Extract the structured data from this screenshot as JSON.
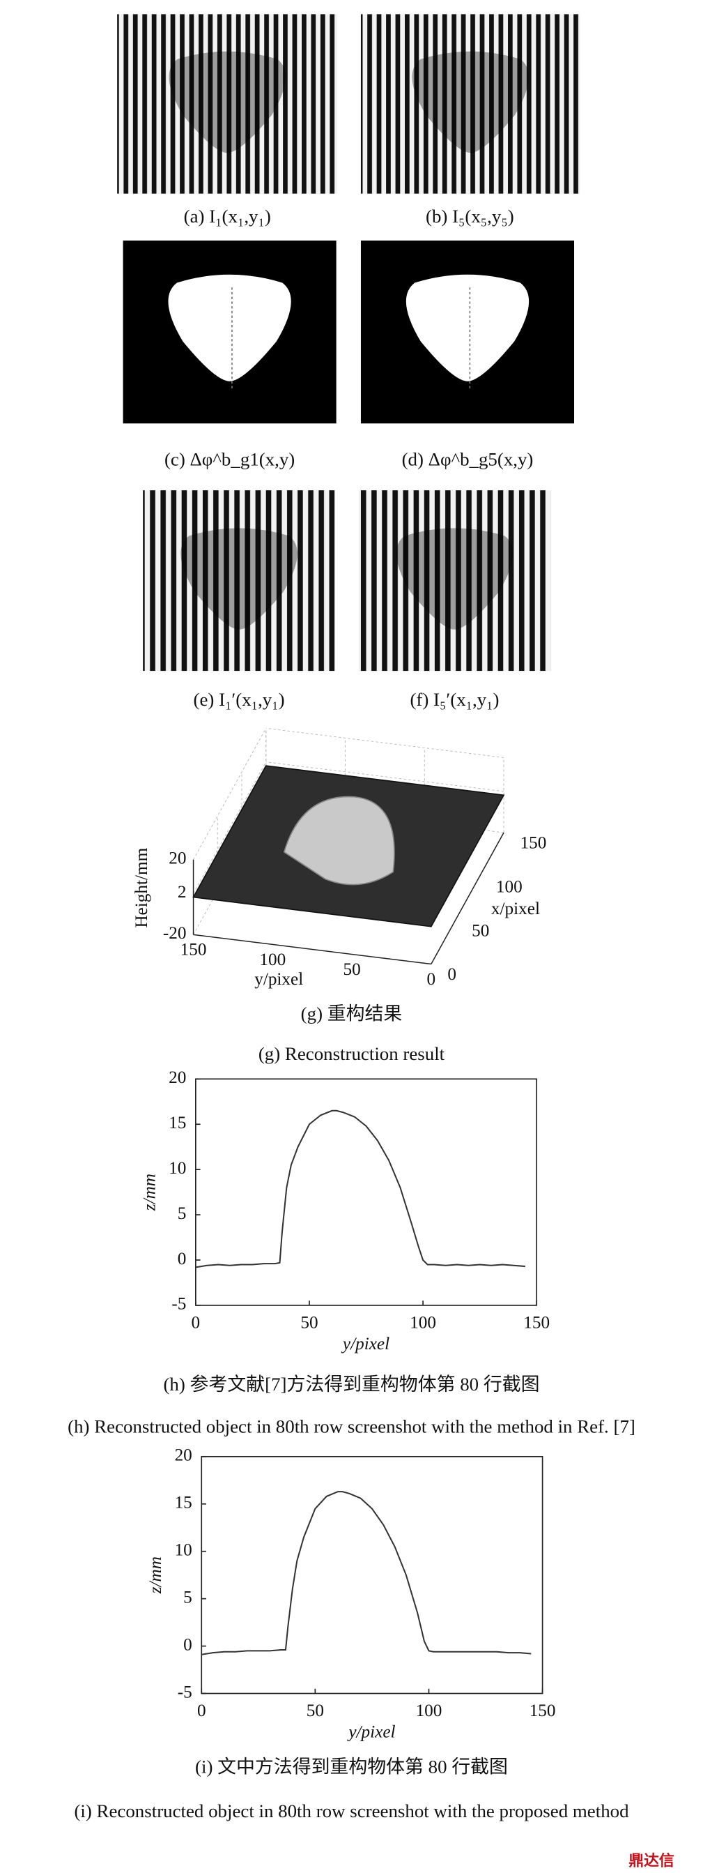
{
  "figure": {
    "captions": [
      "(a) I₁(x₁,y₁)",
      "(b) I₅(x₅,y₅)",
      "(c) Δφ^b_g1(x,y)",
      "(d) Δφ^b_g5(x,y)",
      "(e) I₁′(x₁,y₁)",
      "(f) I₅′(x₁,y₁)"
    ],
    "g_caption_cn": "(g) 重构结果",
    "g_caption_en": "(g) Reconstruction result",
    "h_caption_cn": "(h) 参考文献[7]方法得到重构物体第 80 行截图",
    "h_caption_en": "(h) Reconstructed object in 80th row screenshot with the method in Ref. [7]",
    "i_caption_cn": "(i) 文中方法得到重构物体第 80 行截图",
    "i_caption_en": "(i) Reconstructed object in 80th row screenshot with the proposed method",
    "watermark": "鼎达信"
  },
  "chart_data": [
    {
      "type": "surface3d",
      "zlabel": "Height/mm",
      "xlabel": "x/pixel",
      "ylabel": "y/pixel",
      "xlim": [
        0,
        150
      ],
      "ylim": [
        0,
        150
      ],
      "zlim": [
        -20,
        20
      ],
      "xticks": [
        0,
        50,
        100,
        150
      ],
      "yticks": [
        0,
        50,
        100,
        150
      ],
      "zticks": [
        -20,
        2,
        20
      ]
    },
    {
      "type": "line",
      "xlabel": "y/pixel",
      "ylabel": "z/mm",
      "color": "#333333",
      "xlim": [
        0,
        150
      ],
      "xticks": [
        0,
        50,
        100,
        150
      ],
      "ylim": [
        -5,
        20
      ],
      "yticks": [
        -5,
        0,
        5,
        10,
        15,
        20
      ],
      "x": [
        0,
        5,
        10,
        15,
        20,
        25,
        30,
        35,
        37,
        38,
        40,
        42,
        45,
        50,
        55,
        60,
        62,
        65,
        70,
        75,
        80,
        85,
        90,
        95,
        98,
        100,
        102,
        105,
        110,
        115,
        120,
        125,
        130,
        135,
        140,
        145
      ],
      "values": [
        -0.8,
        -0.6,
        -0.5,
        -0.6,
        -0.5,
        -0.5,
        -0.4,
        -0.4,
        -0.3,
        3,
        8,
        10.5,
        12.5,
        15,
        16,
        16.5,
        16.5,
        16.3,
        15.8,
        14.8,
        13.2,
        11,
        8,
        4,
        1.5,
        0,
        -0.5,
        -0.5,
        -0.6,
        -0.5,
        -0.6,
        -0.5,
        -0.6,
        -0.5,
        -0.6,
        -0.7
      ]
    },
    {
      "type": "line",
      "xlabel": "y/pixel",
      "ylabel": "z/mm",
      "color": "#333333",
      "xlim": [
        0,
        150
      ],
      "xticks": [
        0,
        50,
        100,
        150
      ],
      "ylim": [
        -5,
        20
      ],
      "yticks": [
        -5,
        0,
        5,
        10,
        15,
        20
      ],
      "x": [
        0,
        5,
        10,
        15,
        20,
        25,
        30,
        35,
        37,
        38,
        40,
        42,
        45,
        50,
        55,
        60,
        62,
        65,
        70,
        75,
        80,
        85,
        90,
        95,
        98,
        100,
        102,
        105,
        110,
        115,
        120,
        125,
        130,
        135,
        140,
        145
      ],
      "values": [
        -0.9,
        -0.7,
        -0.6,
        -0.6,
        -0.5,
        -0.5,
        -0.5,
        -0.4,
        -0.4,
        2,
        6,
        9,
        11.5,
        14.5,
        15.8,
        16.3,
        16.3,
        16.1,
        15.6,
        14.5,
        12.8,
        10.5,
        7.5,
        3.5,
        0.5,
        -0.5,
        -0.6,
        -0.6,
        -0.6,
        -0.6,
        -0.6,
        -0.6,
        -0.6,
        -0.7,
        -0.7,
        -0.8
      ]
    }
  ]
}
